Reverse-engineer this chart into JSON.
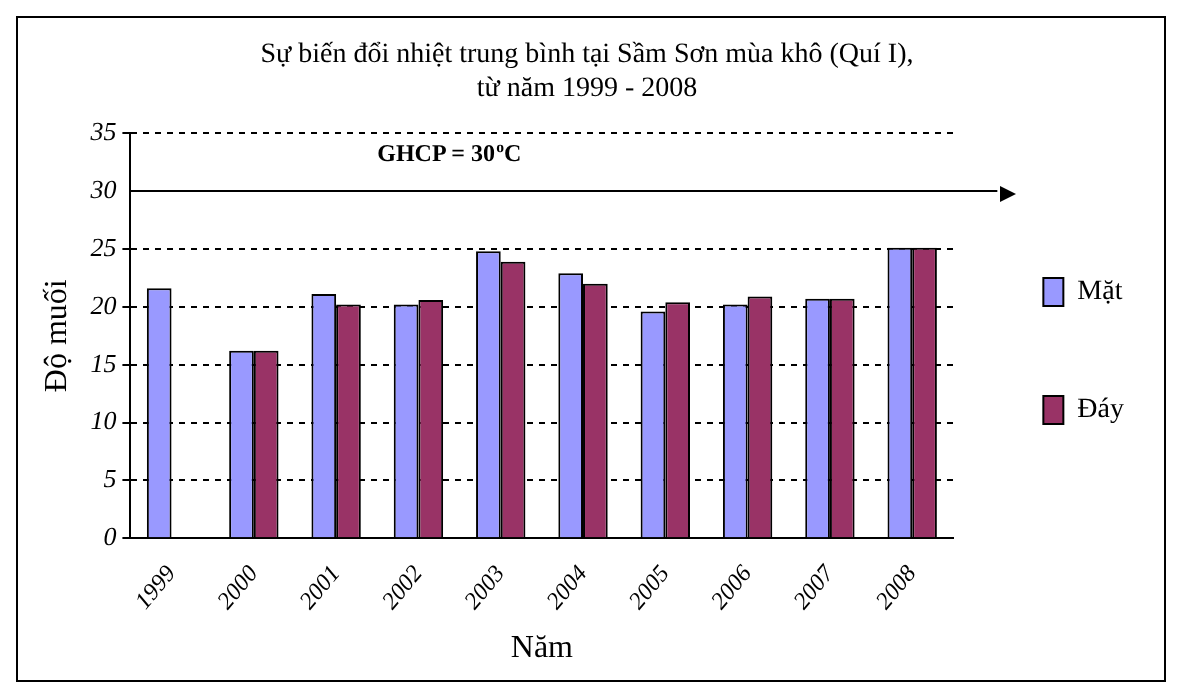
{
  "chart_data": {
    "type": "bar",
    "title": "Sự biến đổi nhiệt trung bình tại Sầm Sơn mùa khô (Quí I),\ntừ năm 1999 - 2008",
    "xlabel": "Năm",
    "ylabel": "Độ muối",
    "categories": [
      "1999",
      "2000",
      "2001",
      "2002",
      "2003",
      "2004",
      "2005",
      "2006",
      "2007",
      "2008"
    ],
    "series": [
      {
        "name": "Mặt",
        "color": "#9999ff",
        "values": [
          21.6,
          16.2,
          21.1,
          20.2,
          24.8,
          22.9,
          19.6,
          20.2,
          20.7,
          25.1
        ]
      },
      {
        "name": "Đáy",
        "color": "#993366",
        "values": [
          null,
          16.2,
          20.2,
          20.6,
          23.9,
          22.0,
          20.4,
          20.9,
          20.7,
          25.1
        ]
      }
    ],
    "ylim": [
      0,
      35
    ],
    "yticks": [
      0,
      5,
      10,
      15,
      20,
      25,
      30,
      35
    ],
    "grid": "y",
    "legend": "right",
    "ref_lines": [
      {
        "axis": "y",
        "value": 30,
        "label": "GHCP = 30$^{o}$C",
        "color": "#000000",
        "line_style": "solid"
      }
    ]
  }
}
